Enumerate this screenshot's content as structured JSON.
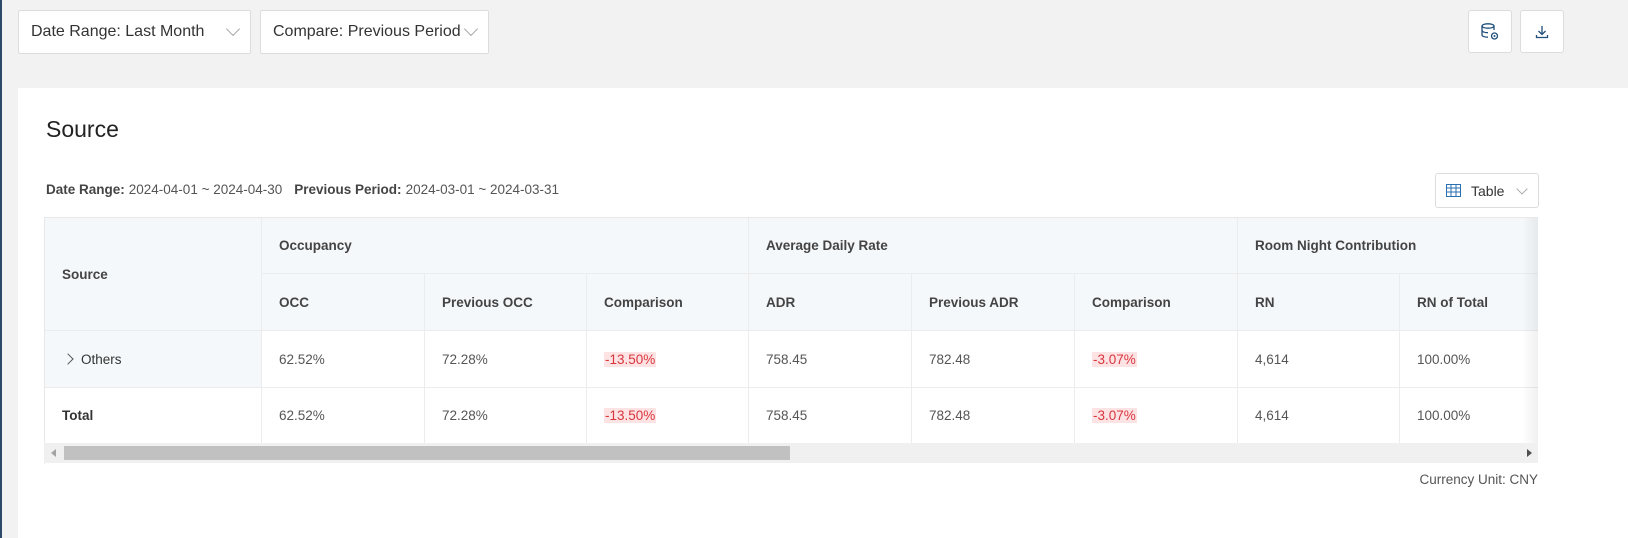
{
  "filters": {
    "date_range": "Date Range: Last Month",
    "compare": "Compare: Previous Period"
  },
  "toolbar": {
    "icons": [
      "database-settings-icon",
      "download-icon"
    ]
  },
  "card": {
    "title": "Source",
    "date_range_label": "Date Range:",
    "date_range_value": "2024-04-01 ~ 2024-04-30",
    "previous_label": "Previous Period:",
    "previous_value": "2024-03-01 ~ 2024-03-31",
    "view_mode": "Table",
    "currency": "Currency Unit: CNY"
  },
  "table": {
    "source_header": "Source",
    "groups": [
      "Occupancy",
      "Average Daily Rate",
      "Room Night Contribution"
    ],
    "columns": [
      "OCC",
      "Previous OCC",
      "Comparison",
      "ADR",
      "Previous ADR",
      "Comparison",
      "RN",
      "RN of Total"
    ],
    "rows": [
      {
        "label": "Others",
        "expandable": true,
        "values": [
          "62.52%",
          "72.28%",
          "-13.50%",
          "758.45",
          "782.48",
          "-3.07%",
          "4,614",
          "100.00%"
        ]
      },
      {
        "label": "Total",
        "expandable": false,
        "values": [
          "62.52%",
          "72.28%",
          "-13.50%",
          "758.45",
          "782.48",
          "-3.07%",
          "4,614",
          "100.00%"
        ]
      }
    ]
  },
  "colors": {
    "negative_text": "#d9363e",
    "negative_bg": "#fde3e3",
    "header_bg": "#f5f8fb"
  }
}
